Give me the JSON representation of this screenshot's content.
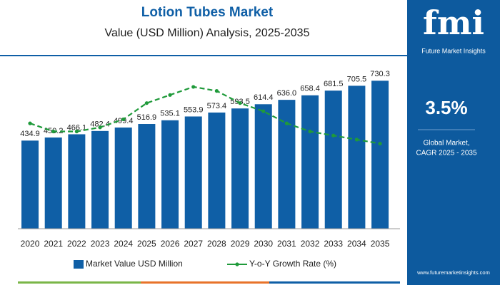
{
  "chart_data": {
    "type": "bar",
    "title": "Lotion Tubes Market",
    "subtitle": "Value (USD Million) Analysis, 2025-2035",
    "categories": [
      "2020",
      "2021",
      "2022",
      "2023",
      "2024",
      "2025",
      "2026",
      "2027",
      "2028",
      "2029",
      "2030",
      "2031",
      "2032",
      "2033",
      "2034",
      "2035"
    ],
    "series": [
      {
        "name": "Market Value USD Million",
        "type": "bar",
        "color": "#0f5fa6",
        "values": [
          434.9,
          450.2,
          466.1,
          482.4,
          499.4,
          516.9,
          535.1,
          553.9,
          573.4,
          593.5,
          614.4,
          636.0,
          658.4,
          681.5,
          705.5,
          730.3
        ],
        "value_labels": [
          "434.9",
          "450.2",
          "466.1",
          "482.4",
          "499.4",
          "516.9",
          "535.1",
          "553.9",
          "573.4",
          "593.5",
          "614.4",
          "636.0",
          "658.4",
          "681.5",
          "705.5",
          "730.3"
        ]
      },
      {
        "name": "Y-o-Y Growth Rate (%)",
        "type": "line",
        "axis": "y2",
        "color": "#1f9a3a",
        "values": [
          3.56,
          3.54,
          3.54,
          3.55,
          3.57,
          3.61,
          3.63,
          3.65,
          3.64,
          3.61,
          3.59,
          3.56,
          3.54,
          3.53,
          3.52,
          3.51
        ]
      }
    ],
    "ylim": [
      0,
      800
    ],
    "y2lim": [
      3.3,
      3.7
    ],
    "legend": "bottom"
  },
  "panel": {
    "logo": "fmi",
    "brand": "Future Market Insights",
    "cagr": "3.5%",
    "cagr_label_1": "Global Market,",
    "cagr_label_2": "CAGR 2025 - 2035",
    "url": "www.futuremarketinsights.com"
  }
}
